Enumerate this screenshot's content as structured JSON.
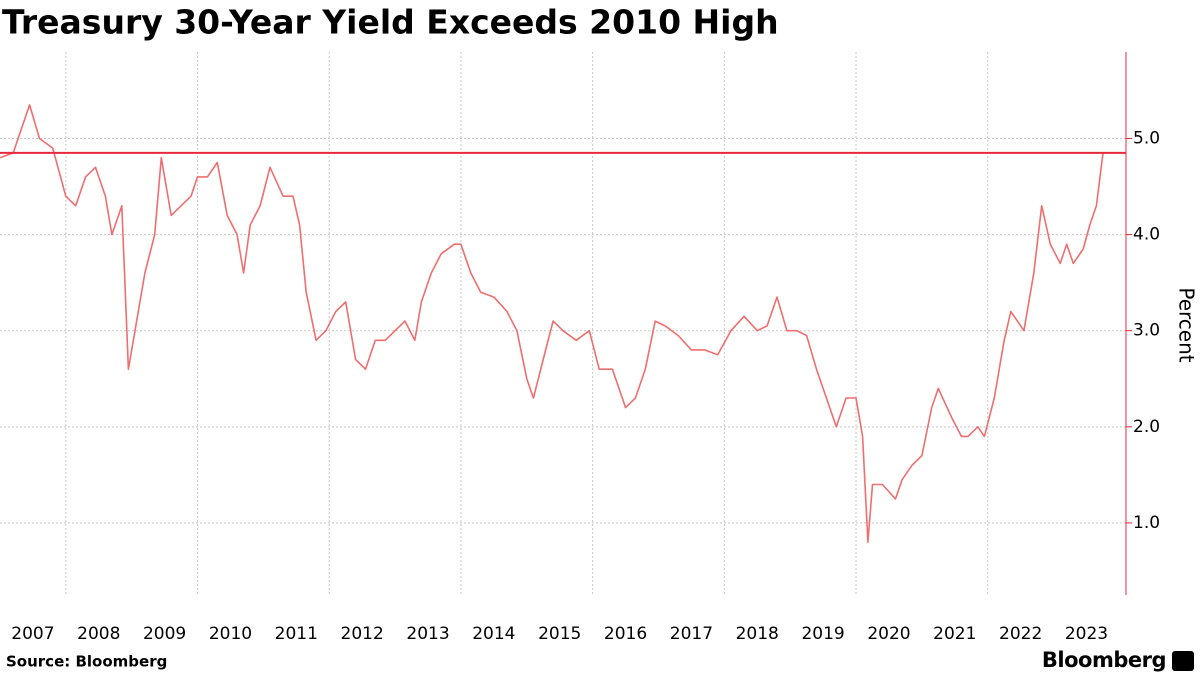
{
  "chart_data": {
    "type": "line",
    "title": "Treasury 30-Year Yield Exceeds 2010 High",
    "y_label": "Percent",
    "source": "Source: Bloomberg",
    "brand": "Bloomberg",
    "reference_line": 4.85,
    "reference_color": "#e8283c",
    "grid": true,
    "xlim": [
      2007,
      2024.1
    ],
    "ylim": [
      0.25,
      5.9
    ],
    "xticks": [
      {
        "value": 2007.5,
        "label": "2007"
      },
      {
        "value": 2008.5,
        "label": "2008"
      },
      {
        "value": 2009.5,
        "label": "2009"
      },
      {
        "value": 2010.5,
        "label": "2010"
      },
      {
        "value": 2011.5,
        "label": "2011"
      },
      {
        "value": 2012.5,
        "label": "2012"
      },
      {
        "value": 2013.5,
        "label": "2013"
      },
      {
        "value": 2014.5,
        "label": "2014"
      },
      {
        "value": 2015.5,
        "label": "2015"
      },
      {
        "value": 2016.5,
        "label": "2016"
      },
      {
        "value": 2017.5,
        "label": "2017"
      },
      {
        "value": 2018.5,
        "label": "2018"
      },
      {
        "value": 2019.5,
        "label": "2019"
      },
      {
        "value": 2020.5,
        "label": "2020"
      },
      {
        "value": 2021.5,
        "label": "2021"
      },
      {
        "value": 2022.5,
        "label": "2022"
      },
      {
        "value": 2023.5,
        "label": "2023"
      }
    ],
    "xgrid": [
      2008,
      2010,
      2012,
      2014,
      2016,
      2018,
      2020,
      2022
    ],
    "yticks": [
      {
        "value": 1,
        "label": "1.0"
      },
      {
        "value": 2,
        "label": "2.0"
      },
      {
        "value": 3,
        "label": "3.0"
      },
      {
        "value": 4,
        "label": "4.0"
      },
      {
        "value": 5,
        "label": "5.0"
      }
    ],
    "series": [
      {
        "name": "Treasury 30-Year Yield",
        "color": "#f06e6e",
        "x": [
          2007.0,
          2007.2,
          2007.45,
          2007.6,
          2007.8,
          2008.0,
          2008.15,
          2008.3,
          2008.45,
          2008.6,
          2008.7,
          2008.85,
          2008.95,
          2009.05,
          2009.2,
          2009.35,
          2009.45,
          2009.6,
          2009.75,
          2009.9,
          2010.0,
          2010.15,
          2010.3,
          2010.45,
          2010.6,
          2010.7,
          2010.8,
          2010.95,
          2011.1,
          2011.3,
          2011.45,
          2011.55,
          2011.65,
          2011.8,
          2011.95,
          2012.1,
          2012.25,
          2012.4,
          2012.55,
          2012.7,
          2012.85,
          2013.0,
          2013.15,
          2013.3,
          2013.4,
          2013.55,
          2013.7,
          2013.9,
          2014.0,
          2014.15,
          2014.3,
          2014.5,
          2014.7,
          2014.85,
          2015.0,
          2015.1,
          2015.25,
          2015.4,
          2015.55,
          2015.75,
          2015.95,
          2016.1,
          2016.3,
          2016.5,
          2016.65,
          2016.8,
          2016.95,
          2017.1,
          2017.3,
          2017.5,
          2017.7,
          2017.9,
          2018.1,
          2018.3,
          2018.5,
          2018.65,
          2018.8,
          2018.95,
          2019.1,
          2019.25,
          2019.4,
          2019.6,
          2019.7,
          2019.85,
          2020.0,
          2020.1,
          2020.18,
          2020.25,
          2020.4,
          2020.6,
          2020.7,
          2020.85,
          2021.0,
          2021.15,
          2021.25,
          2021.45,
          2021.6,
          2021.7,
          2021.85,
          2021.95,
          2022.1,
          2022.25,
          2022.35,
          2022.45,
          2022.55,
          2022.7,
          2022.82,
          2022.95,
          2023.1,
          2023.2,
          2023.3,
          2023.45,
          2023.55,
          2023.65,
          2023.75
        ],
        "values": [
          4.8,
          4.85,
          5.35,
          5.0,
          4.9,
          4.4,
          4.3,
          4.6,
          4.7,
          4.4,
          4.0,
          4.3,
          2.6,
          3.0,
          3.6,
          4.0,
          4.8,
          4.2,
          4.3,
          4.4,
          4.6,
          4.6,
          4.75,
          4.2,
          4.0,
          3.6,
          4.1,
          4.3,
          4.7,
          4.4,
          4.4,
          4.1,
          3.4,
          2.9,
          3.0,
          3.2,
          3.3,
          2.7,
          2.6,
          2.9,
          2.9,
          3.0,
          3.1,
          2.9,
          3.3,
          3.6,
          3.8,
          3.9,
          3.9,
          3.6,
          3.4,
          3.35,
          3.2,
          3.0,
          2.5,
          2.3,
          2.7,
          3.1,
          3.0,
          2.9,
          3.0,
          2.6,
          2.6,
          2.2,
          2.3,
          2.6,
          3.1,
          3.05,
          2.95,
          2.8,
          2.8,
          2.75,
          3.0,
          3.15,
          3.0,
          3.05,
          3.35,
          3.0,
          3.0,
          2.95,
          2.6,
          2.2,
          2.0,
          2.3,
          2.3,
          1.9,
          0.8,
          1.4,
          1.4,
          1.25,
          1.45,
          1.6,
          1.7,
          2.2,
          2.4,
          2.1,
          1.9,
          1.9,
          2.0,
          1.9,
          2.3,
          2.9,
          3.2,
          3.1,
          3.0,
          3.6,
          4.3,
          3.9,
          3.7,
          3.9,
          3.7,
          3.85,
          4.1,
          4.3,
          4.85
        ]
      }
    ]
  }
}
